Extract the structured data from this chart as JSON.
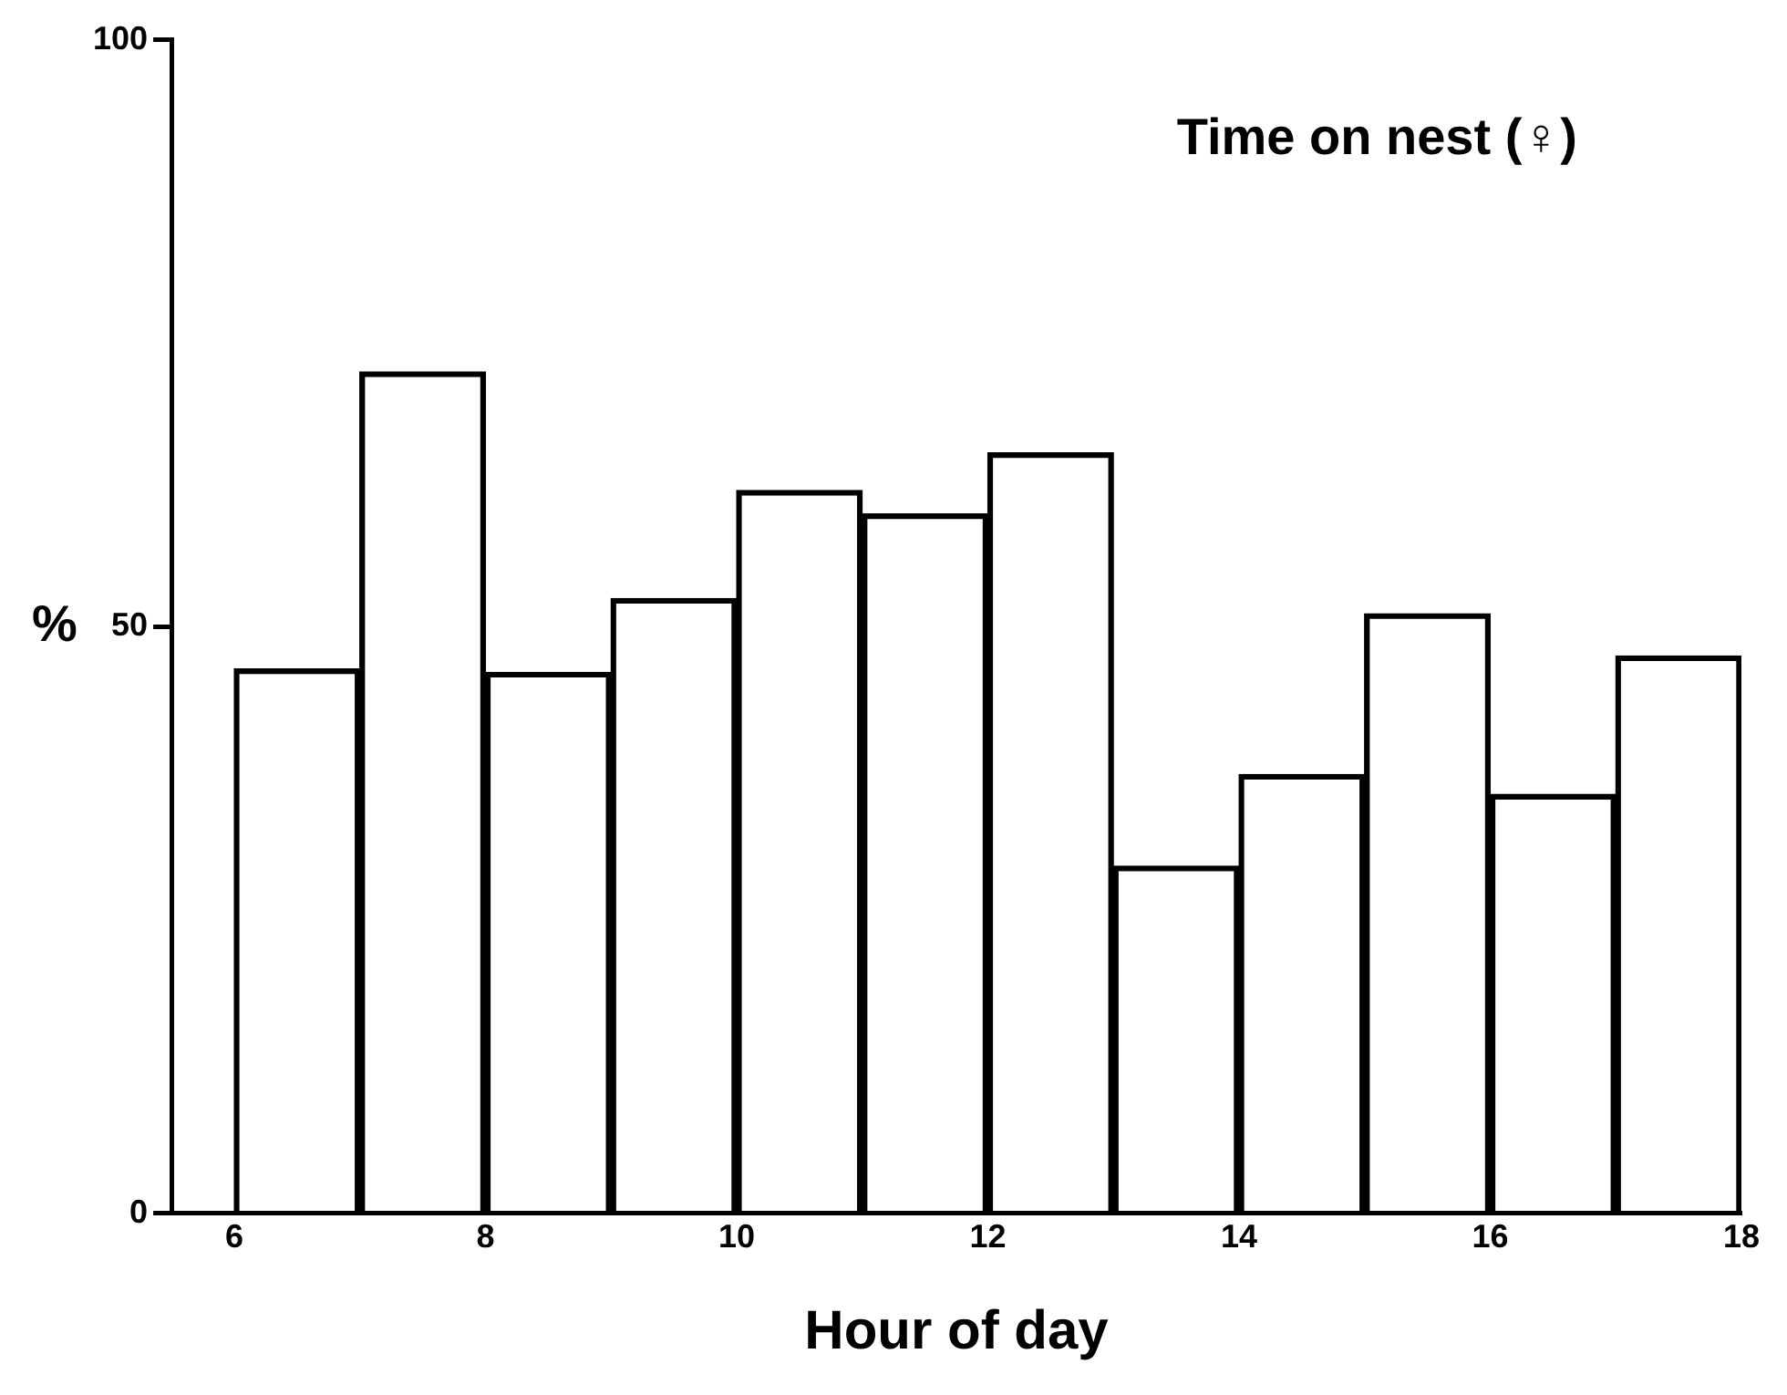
{
  "chart_data": {
    "type": "histogram",
    "title": "Time on nest (♀)",
    "xlabel": "Hour of day",
    "ylabel": "%",
    "bins": [
      6,
      7,
      8,
      9,
      10,
      11,
      12,
      13,
      14,
      15,
      16,
      17,
      18
    ],
    "values": [
      46.4,
      71.7,
      46.1,
      52.4,
      61.6,
      59.6,
      64.8,
      29.6,
      37.4,
      51.1,
      35.7,
      47.5
    ],
    "color": "#000000",
    "xlim": [
      5.5,
      18
    ],
    "xticks": [
      6,
      8,
      10,
      12,
      14,
      16,
      18
    ],
    "ylim": [
      0,
      100
    ],
    "yticks": [
      0,
      50,
      100
    ],
    "grid": false
  }
}
